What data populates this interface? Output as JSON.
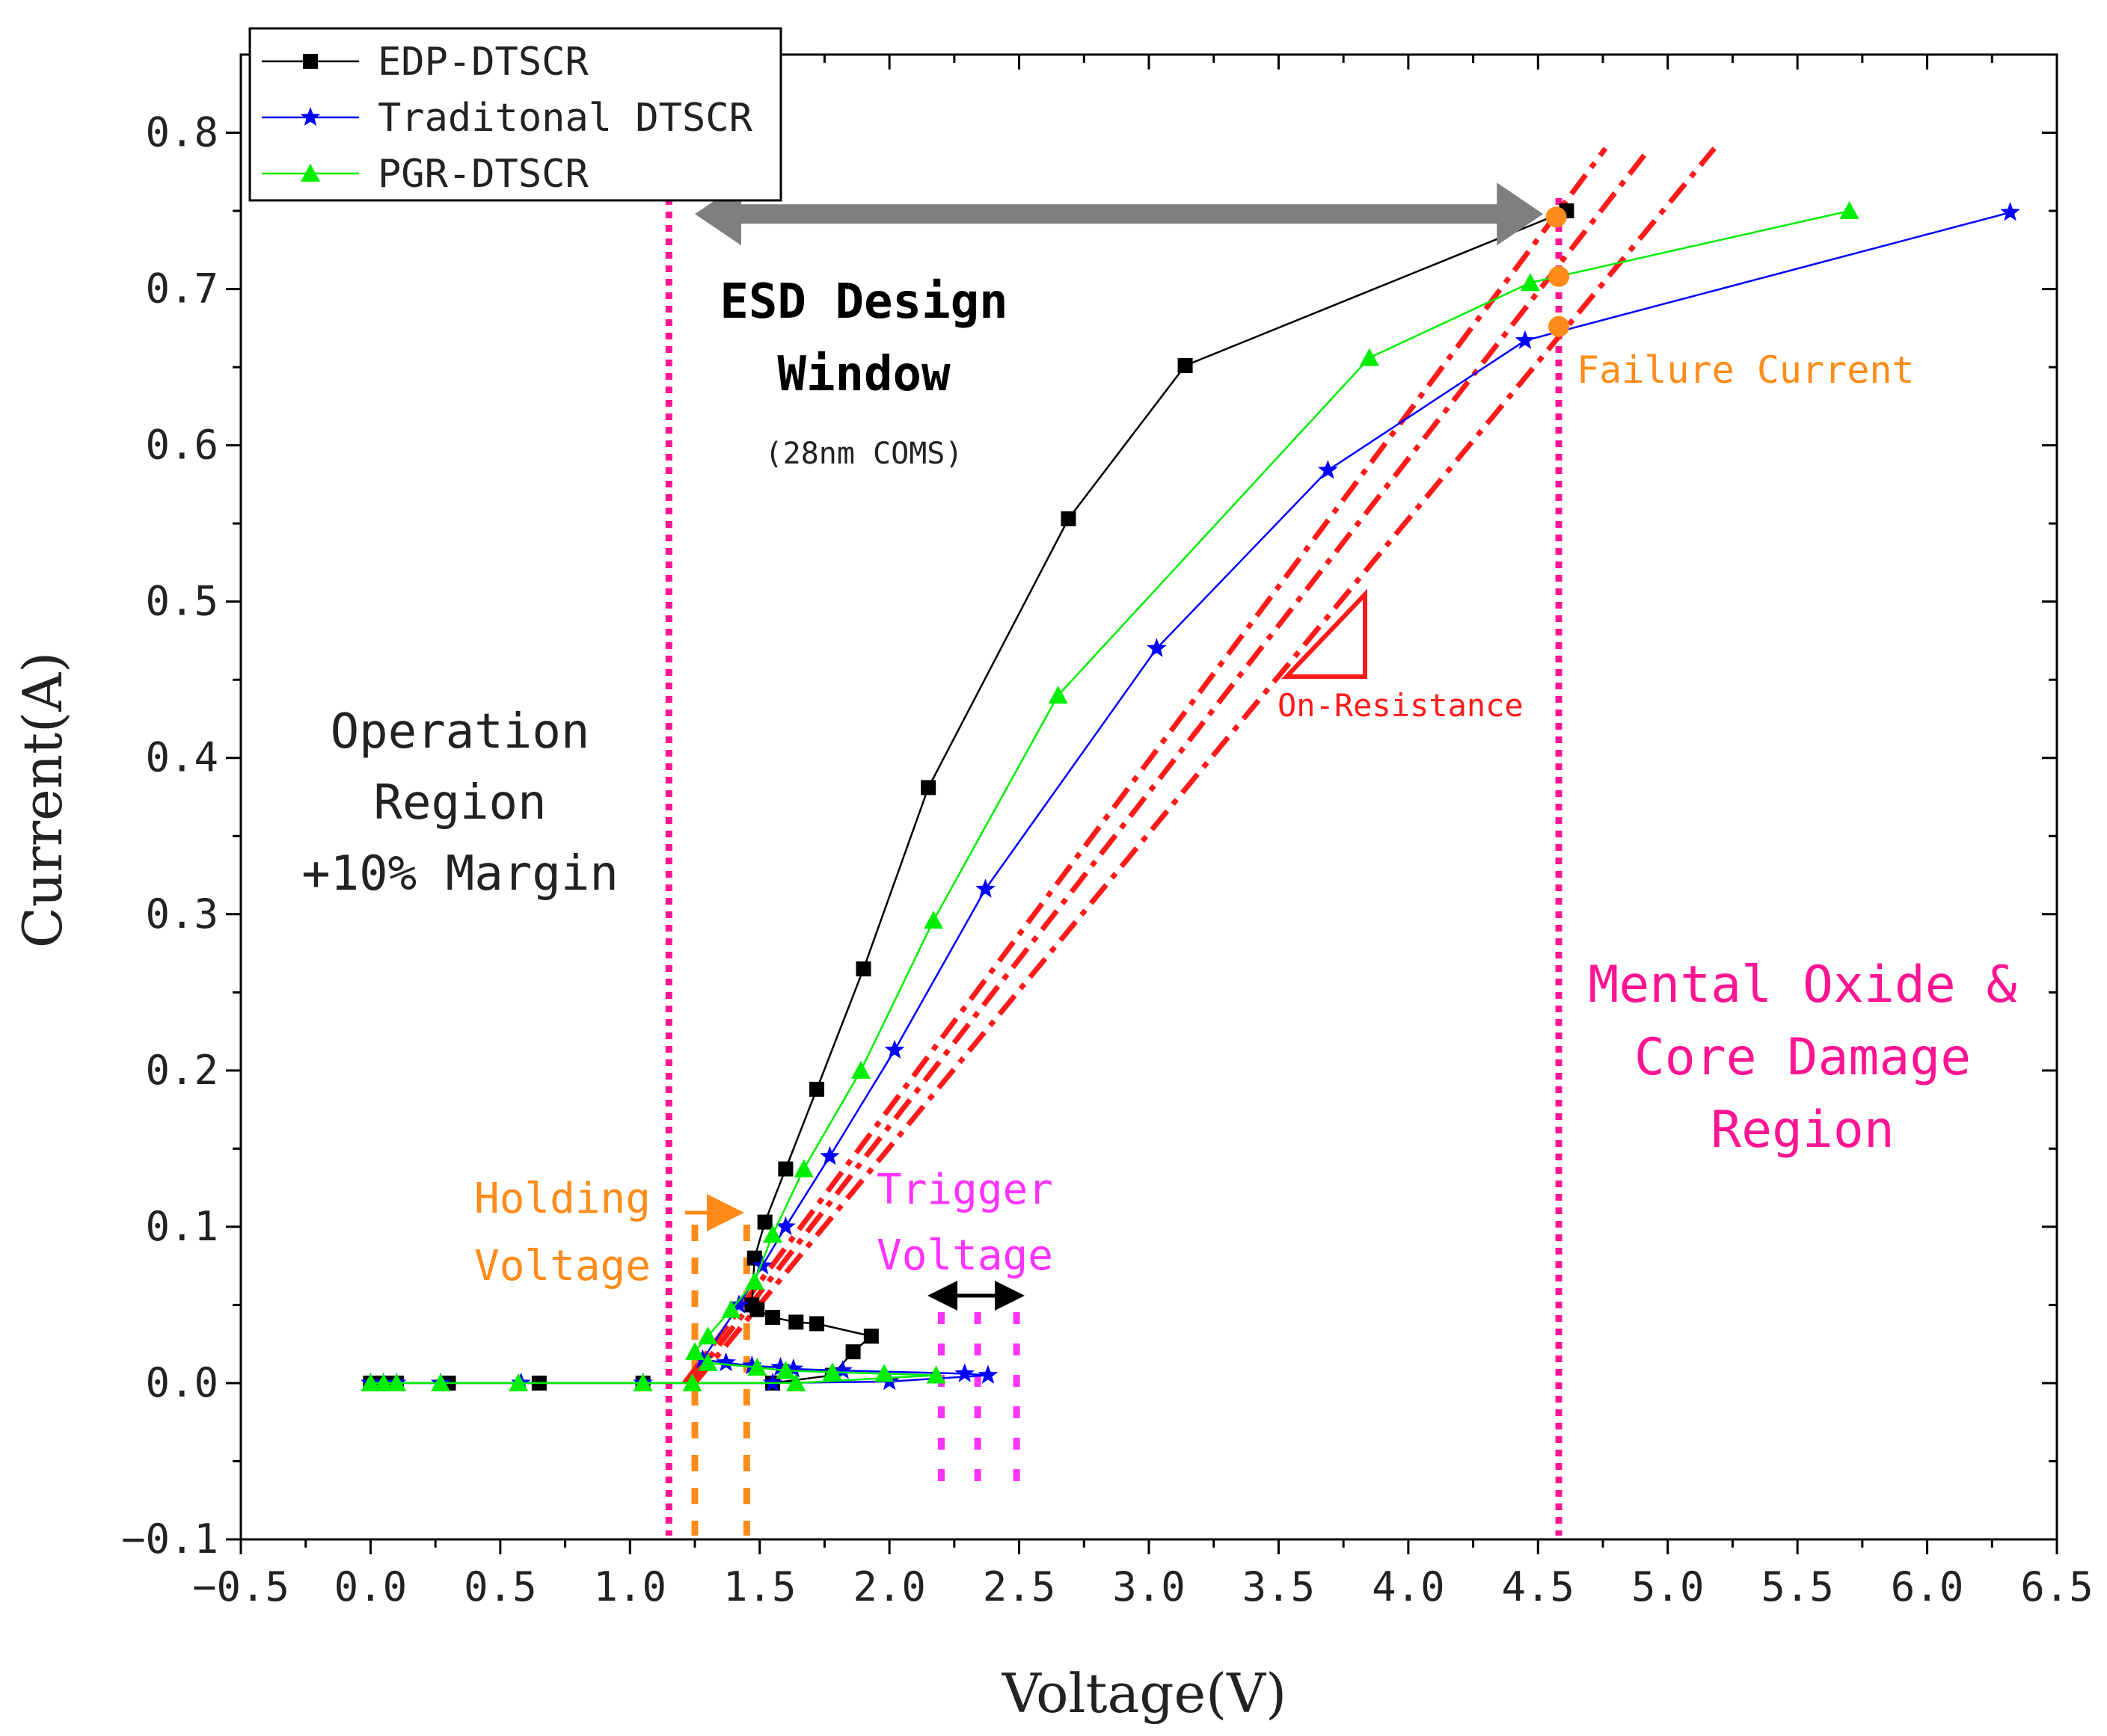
{
  "chart_data": {
    "type": "line",
    "title": "",
    "xlabel": "Voltage(V)",
    "ylabel": "Current(A)",
    "xlim": [
      -0.5,
      6.5
    ],
    "ylim": [
      -0.1,
      0.85
    ],
    "x_ticks": [
      -0.5,
      0.0,
      0.5,
      1.0,
      1.5,
      2.0,
      2.5,
      3.0,
      3.5,
      4.0,
      4.5,
      5.0,
      5.5,
      6.0,
      6.5
    ],
    "x_tick_labels": [
      "-0.5",
      "0.0",
      "0.5",
      "1.0",
      "1.5",
      "2.0",
      "2.5",
      "3.0",
      "3.5",
      "4.0",
      "4.5",
      "5.0",
      "5.5",
      "6.0",
      "6.5"
    ],
    "y_ticks": [
      -0.1,
      0.0,
      0.1,
      0.2,
      0.3,
      0.4,
      0.5,
      0.6,
      0.7,
      0.8
    ],
    "y_tick_labels": [
      "-0.1",
      "0.0",
      "0.1",
      "0.2",
      "0.3",
      "0.4",
      "0.5",
      "0.6",
      "0.7",
      "0.8"
    ],
    "legend_position": "top-left",
    "series": [
      {
        "name": "EDP-DTSCR",
        "color": "#000000",
        "marker": "square",
        "points": [
          [
            0.0,
            0.0
          ],
          [
            0.05,
            0.0
          ],
          [
            0.1,
            0.0
          ],
          [
            0.3,
            0.0
          ],
          [
            0.65,
            0.0
          ],
          [
            1.05,
            0.0
          ],
          [
            1.55,
            0.0
          ],
          [
            1.78,
            0.005
          ],
          [
            1.86,
            0.02
          ],
          [
            1.93,
            0.03
          ],
          [
            1.72,
            0.038
          ],
          [
            1.64,
            0.039
          ],
          [
            1.55,
            0.042
          ],
          [
            1.49,
            0.047
          ],
          [
            1.47,
            0.05
          ],
          [
            1.48,
            0.08
          ],
          [
            1.52,
            0.103
          ],
          [
            1.6,
            0.137
          ],
          [
            1.72,
            0.188
          ],
          [
            1.9,
            0.265
          ],
          [
            2.15,
            0.381
          ],
          [
            2.69,
            0.553
          ],
          [
            3.14,
            0.651
          ],
          [
            4.61,
            0.75
          ]
        ]
      },
      {
        "name": "Traditonal DTSCR",
        "color": "#0000ff",
        "marker": "star",
        "points": [
          [
            0.0,
            0.0
          ],
          [
            0.05,
            0.0
          ],
          [
            0.1,
            0.0
          ],
          [
            0.27,
            0.0
          ],
          [
            0.58,
            0.0
          ],
          [
            1.05,
            0.0
          ],
          [
            1.55,
            0.0
          ],
          [
            2.0,
            0.001
          ],
          [
            2.38,
            0.005
          ],
          [
            2.29,
            0.006
          ],
          [
            1.82,
            0.008
          ],
          [
            1.63,
            0.009
          ],
          [
            1.58,
            0.01
          ],
          [
            1.47,
            0.011
          ],
          [
            1.37,
            0.013
          ],
          [
            1.28,
            0.015
          ],
          [
            1.42,
            0.05
          ],
          [
            1.51,
            0.075
          ],
          [
            1.6,
            0.1
          ],
          [
            1.77,
            0.145
          ],
          [
            2.02,
            0.213
          ],
          [
            2.37,
            0.316
          ],
          [
            3.03,
            0.47
          ],
          [
            3.69,
            0.584
          ],
          [
            4.45,
            0.667
          ],
          [
            6.32,
            0.749
          ]
        ]
      },
      {
        "name": "PGR-DTSCR",
        "color": "#00ee00",
        "marker": "triangle",
        "points": [
          [
            0.0,
            0.0
          ],
          [
            0.05,
            0.0
          ],
          [
            0.1,
            0.0
          ],
          [
            0.27,
            0.0
          ],
          [
            0.57,
            0.0
          ],
          [
            1.05,
            0.0
          ],
          [
            1.24,
            0.0
          ],
          [
            1.64,
            0.0
          ],
          [
            2.18,
            0.005
          ],
          [
            1.98,
            0.006
          ],
          [
            1.78,
            0.007
          ],
          [
            1.6,
            0.008
          ],
          [
            1.49,
            0.01
          ],
          [
            1.3,
            0.013
          ],
          [
            1.25,
            0.02
          ],
          [
            1.3,
            0.03
          ],
          [
            1.39,
            0.047
          ],
          [
            1.48,
            0.065
          ],
          [
            1.55,
            0.095
          ],
          [
            1.67,
            0.137
          ],
          [
            1.89,
            0.2
          ],
          [
            2.17,
            0.296
          ],
          [
            2.65,
            0.44
          ],
          [
            3.85,
            0.656
          ],
          [
            4.47,
            0.704
          ],
          [
            5.7,
            0.75
          ]
        ]
      }
    ],
    "on_resistance_lines": [
      {
        "from": [
          1.21,
          0.0
        ],
        "to": [
          4.76,
          0.79
        ]
      },
      {
        "from": [
          1.23,
          0.0
        ],
        "to": [
          4.93,
          0.79
        ]
      },
      {
        "from": [
          1.25,
          0.0
        ],
        "to": [
          5.18,
          0.79
        ]
      }
    ],
    "failure_points": [
      [
        4.57,
        0.746
      ],
      [
        4.58,
        0.708
      ],
      [
        4.58,
        0.676
      ]
    ],
    "reference_lines": {
      "vertical_pink": [
        1.15,
        4.58
      ],
      "holding_voltage": [
        1.25,
        1.45
      ],
      "trigger_voltage": [
        2.2,
        2.34,
        2.49
      ]
    },
    "design_window_arrow": [
      1.25,
      4.52,
      0.748
    ],
    "annotations": {
      "design_window_title": "ESD Design",
      "design_window_title2": "Window",
      "design_window_sub": "(28nm COMS)",
      "operation_region_1": "Operation",
      "operation_region_2": "Region",
      "operation_region_3": "+10% Margin",
      "failure_current": "Failure Current",
      "on_resistance": "On-Resistance",
      "damage_region_1": "Mental Oxide &",
      "damage_region_2": "Core Damage",
      "damage_region_3": "Region",
      "holding_voltage_1": "Holding",
      "holding_voltage_2": "Voltage",
      "trigger_voltage_1": "Trigger",
      "trigger_voltage_2": "Voltage"
    },
    "colors": {
      "pink": "#ff1493",
      "magenta": "#ff33ff",
      "orange": "#ff8c1a",
      "red": "#ff1a1a",
      "gray": "#7f7f7f"
    }
  }
}
